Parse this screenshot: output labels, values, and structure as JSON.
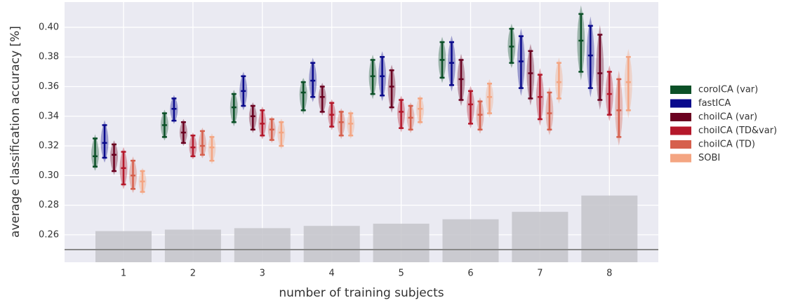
{
  "chart_data": {
    "type": "violin",
    "xlabel": "number of training subjects",
    "ylabel": "average classification accuracy [%]",
    "categories": [
      "1",
      "2",
      "3",
      "4",
      "5",
      "6",
      "7",
      "8"
    ],
    "ylim": [
      0.2415,
      0.417
    ],
    "yticks": [
      0.26,
      0.28,
      {
        "value": 0.3,
        "label": "0.30"
      },
      0.32,
      0.34,
      0.36,
      0.38,
      {
        "value": 0.4,
        "label": "0.40"
      }
    ],
    "grid": true,
    "legend": "right",
    "hline": 0.25,
    "bars": {
      "color": "#c4c4ca",
      "values": [
        0.2625,
        0.2635,
        0.2645,
        0.266,
        0.2675,
        0.2705,
        0.2755,
        0.2865
      ]
    },
    "series": [
      {
        "name": "coroICA (var)",
        "color": "#0b5027",
        "values": [
          0.313,
          0.334,
          0.346,
          0.356,
          0.367,
          0.378,
          0.387,
          0.391
        ],
        "lower": [
          0.306,
          0.326,
          0.336,
          0.344,
          0.355,
          0.366,
          0.376,
          0.37
        ],
        "upper": [
          0.325,
          0.342,
          0.355,
          0.363,
          0.378,
          0.39,
          0.399,
          0.409
        ]
      },
      {
        "name": "fastICA",
        "color": "#0a0a8c",
        "values": [
          0.322,
          0.345,
          0.357,
          0.364,
          0.367,
          0.376,
          0.377,
          0.381
        ],
        "lower": [
          0.312,
          0.337,
          0.347,
          0.353,
          0.354,
          0.361,
          0.359,
          0.359
        ],
        "upper": [
          0.334,
          0.352,
          0.367,
          0.376,
          0.38,
          0.39,
          0.394,
          0.401
        ]
      },
      {
        "name": "choiICA (var)",
        "color": "#6b0120",
        "values": [
          0.314,
          0.329,
          0.34,
          0.353,
          0.36,
          0.365,
          0.369,
          0.369
        ],
        "lower": [
          0.303,
          0.322,
          0.331,
          0.343,
          0.346,
          0.351,
          0.352,
          0.351
        ],
        "upper": [
          0.321,
          0.336,
          0.347,
          0.36,
          0.371,
          0.378,
          0.384,
          0.395
        ]
      },
      {
        "name": "choiICA (TD&var)",
        "color": "#b5182b",
        "values": [
          0.305,
          0.319,
          0.335,
          0.341,
          0.343,
          0.348,
          0.353,
          0.355
        ],
        "lower": [
          0.294,
          0.313,
          0.327,
          0.333,
          0.332,
          0.335,
          0.338,
          0.341
        ],
        "upper": [
          0.316,
          0.327,
          0.344,
          0.349,
          0.351,
          0.357,
          0.368,
          0.37
        ]
      },
      {
        "name": "choiICA (TD)",
        "color": "#d6604d",
        "values": [
          0.3,
          0.32,
          0.331,
          0.336,
          0.339,
          0.341,
          0.342,
          0.344
        ],
        "lower": [
          0.291,
          0.314,
          0.324,
          0.327,
          0.331,
          0.331,
          0.331,
          0.326
        ],
        "upper": [
          0.31,
          0.33,
          0.338,
          0.343,
          0.347,
          0.35,
          0.356,
          0.365
        ]
      },
      {
        "name": "SOBI",
        "color": "#f4a582",
        "values": [
          0.296,
          0.319,
          0.329,
          0.335,
          0.345,
          0.353,
          0.363,
          0.363
        ],
        "lower": [
          0.289,
          0.31,
          0.32,
          0.327,
          0.336,
          0.342,
          0.352,
          0.344
        ],
        "upper": [
          0.303,
          0.326,
          0.336,
          0.342,
          0.352,
          0.362,
          0.376,
          0.38
        ]
      }
    ]
  }
}
